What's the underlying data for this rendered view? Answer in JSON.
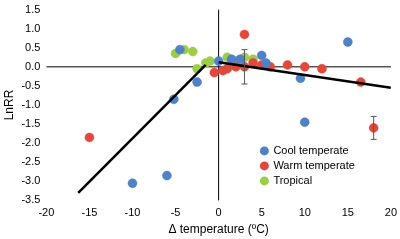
{
  "chart_data": {
    "type": "scatter",
    "x_label": "Δ temperature (ºC)",
    "y_label": "LnRR",
    "xlim": [
      -20,
      20
    ],
    "xticks": [
      -20,
      -15,
      -10,
      -5,
      0,
      5,
      10,
      15,
      20
    ],
    "ylim": [
      -3.5,
      1.5
    ],
    "yticks": [
      {
        "value": -3.5,
        "label": "-3.5"
      },
      {
        "value": -3,
        "label": "-3.0"
      },
      -2.5,
      {
        "value": -2,
        "label": "-2.0"
      },
      -1.5,
      {
        "value": -1,
        "label": "-1.0"
      },
      -0.5,
      {
        "value": 0,
        "label": "0.0"
      },
      0.5,
      {
        "value": 1,
        "label": "1.0"
      },
      1.5
    ],
    "grid": false,
    "legend": "lower right",
    "marker": "circle",
    "series": [
      {
        "name": "Cool temperate",
        "color": "#4f81c7",
        "x": [
          -10,
          -6,
          -5.2,
          -4.5,
          -2.5,
          0,
          1.5,
          2.5,
          5,
          5.5,
          9.5,
          10,
          15
        ],
        "y": [
          -3.05,
          -2.85,
          -0.85,
          0.45,
          -0.4,
          0.15,
          0.2,
          0.2,
          0.3,
          0.1,
          -0.3,
          -1.45,
          0.65
        ],
        "error": [
          null,
          null,
          null,
          null,
          null,
          null,
          null,
          null,
          null,
          null,
          null,
          null,
          null
        ]
      },
      {
        "name": "Warm temperate",
        "color": "#e0483c",
        "x": [
          -15,
          -0.5,
          0.5,
          1,
          2,
          3,
          3,
          4,
          5,
          6,
          8,
          10,
          12,
          16.5,
          18
        ],
        "y": [
          -1.85,
          -0.15,
          -0.1,
          -0.05,
          0.0,
          0.85,
          0.0,
          0.1,
          0.05,
          0.0,
          0.05,
          0.0,
          -0.05,
          -0.4,
          -1.6
        ],
        "error": [
          null,
          null,
          null,
          null,
          null,
          null,
          0.45,
          null,
          null,
          null,
          null,
          null,
          null,
          null,
          0.3
        ]
      },
      {
        "name": "Tropical",
        "color": "#9ccc4a",
        "x": [
          -5,
          -4,
          -3,
          -2.5,
          -1.5,
          -1,
          1,
          1.5,
          2,
          3,
          4
        ],
        "y": [
          0.35,
          0.45,
          0.4,
          -0.05,
          0.1,
          0.15,
          0.25,
          0.05,
          0.15,
          0.25,
          0.2
        ],
        "error": [
          null,
          null,
          null,
          null,
          null,
          null,
          null,
          null,
          null,
          null,
          null
        ]
      },
      {
        "type": "line",
        "color": "#000000",
        "x": [
          -16.3,
          -1.5
        ],
        "y": [
          -3.3,
          0.05
        ]
      },
      {
        "type": "line",
        "color": "#000000",
        "x": [
          0,
          20
        ],
        "y": [
          0.12,
          -0.55
        ]
      }
    ]
  }
}
